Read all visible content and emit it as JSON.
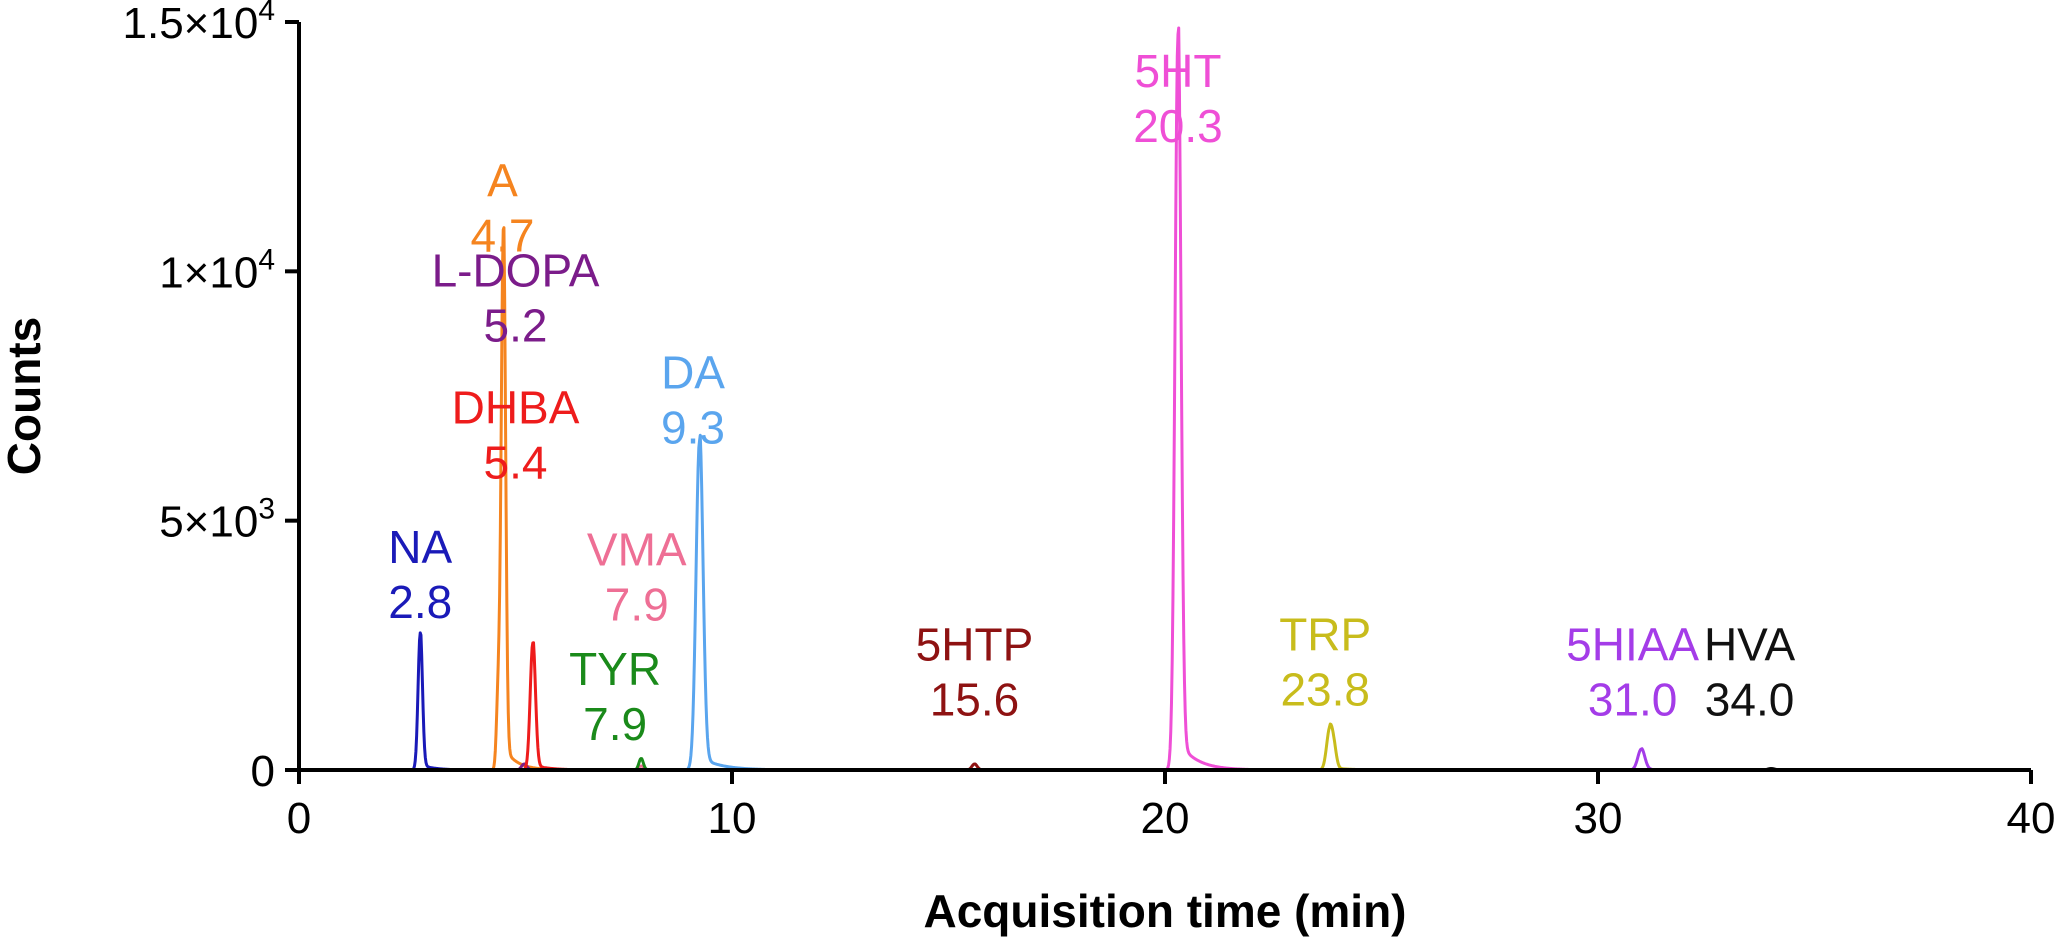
{
  "chart_data": {
    "type": "line",
    "xlabel": "Acquisition time (min)",
    "ylabel": "Counts",
    "xlim": [
      0,
      40
    ],
    "ylim": [
      0,
      15000
    ],
    "x_ticks": [
      {
        "value": 0,
        "label": "0"
      },
      {
        "value": 10,
        "label": "10"
      },
      {
        "value": 20,
        "label": "20"
      },
      {
        "value": 30,
        "label": "30"
      },
      {
        "value": 40,
        "label": "40"
      }
    ],
    "y_ticks": [
      {
        "value": 0,
        "label_base": "0",
        "label_exp": ""
      },
      {
        "value": 5000,
        "label_base": "5×10",
        "label_exp": "3"
      },
      {
        "value": 10000,
        "label_base": "1×10",
        "label_exp": "4"
      },
      {
        "value": 15000,
        "label_base": "1.5×10",
        "label_exp": "4"
      }
    ],
    "series": [
      {
        "name": "NA",
        "time_label": "2.8",
        "color": "#1a1ab8",
        "peaks": [
          {
            "rt": 2.8,
            "height": 2750,
            "width": 0.05
          }
        ],
        "label_anchor": {
          "x": 2.8,
          "y": 4150
        }
      },
      {
        "name": "A",
        "time_label": "4.7",
        "color": "#f5841f",
        "peaks": [
          {
            "rt": 4.72,
            "height": 10800,
            "width": 0.05
          },
          {
            "rt": 4.6,
            "height": 1500,
            "width": 0.04
          }
        ],
        "label_anchor": {
          "x": 4.7,
          "y": 11500
        }
      },
      {
        "name": "L-DOPA",
        "time_label": "5.2",
        "color": "#7b1c8a",
        "peaks": [
          {
            "rt": 5.2,
            "height": 120,
            "width": 0.06
          }
        ],
        "label_anchor": {
          "x": 5.0,
          "y": 9700
        }
      },
      {
        "name": "DHBA",
        "time_label": "5.4",
        "color": "#ee1c1c",
        "peaks": [
          {
            "rt": 5.4,
            "height": 2550,
            "width": 0.06
          }
        ],
        "label_anchor": {
          "x": 5.0,
          "y": 6950
        }
      },
      {
        "name": "DA",
        "time_label": "9.3",
        "color": "#5aa5ee",
        "peaks": [
          {
            "rt": 9.25,
            "height": 6600,
            "width": 0.08
          }
        ],
        "label_anchor": {
          "x": 9.1,
          "y": 7650
        }
      },
      {
        "name": "VMA",
        "time_label": "7.9",
        "color": "#ee6f95",
        "peaks": [
          {
            "rt": 7.9,
            "height": 80,
            "width": 0.06
          }
        ],
        "label_anchor": {
          "x": 7.8,
          "y": 4100
        }
      },
      {
        "name": "TYR",
        "time_label": "7.9",
        "color": "#1a8a1a",
        "peaks": [
          {
            "rt": 7.9,
            "height": 230,
            "width": 0.05
          }
        ],
        "label_anchor": {
          "x": 7.3,
          "y": 1700
        }
      },
      {
        "name": "5HTP",
        "time_label": "15.6",
        "color": "#8e1212",
        "peaks": [
          {
            "rt": 15.6,
            "height": 120,
            "width": 0.06
          }
        ],
        "label_anchor": {
          "x": 15.6,
          "y": 2200
        }
      },
      {
        "name": "5HT",
        "time_label": "20.3",
        "color": "#ef4fd6",
        "peaks": [
          {
            "rt": 20.3,
            "height": 12300,
            "width": 0.07
          },
          {
            "rt": 20.3,
            "height": 2450,
            "width": 0.06
          }
        ],
        "label_anchor": {
          "x": 20.3,
          "y": 13700
        }
      },
      {
        "name": "TRP",
        "time_label": "23.8",
        "color": "#c8bc1c",
        "peaks": [
          {
            "rt": 23.8,
            "height": 780,
            "width": 0.07
          },
          {
            "rt": 23.9,
            "height": 350,
            "width": 0.06
          }
        ],
        "label_anchor": {
          "x": 23.7,
          "y": 2400
        }
      },
      {
        "name": "5HIAA",
        "time_label": "31.0",
        "color": "#a43ce8",
        "peaks": [
          {
            "rt": 31.0,
            "height": 420,
            "width": 0.08
          }
        ],
        "label_anchor": {
          "x": 30.8,
          "y": 2200
        }
      },
      {
        "name": "HVA",
        "time_label": "34.0",
        "color": "#111111",
        "peaks": [
          {
            "rt": 34.0,
            "height": 30,
            "width": 0.08
          }
        ],
        "label_anchor": {
          "x": 33.5,
          "y": 2200
        }
      }
    ],
    "grid": false,
    "legend": "none"
  }
}
